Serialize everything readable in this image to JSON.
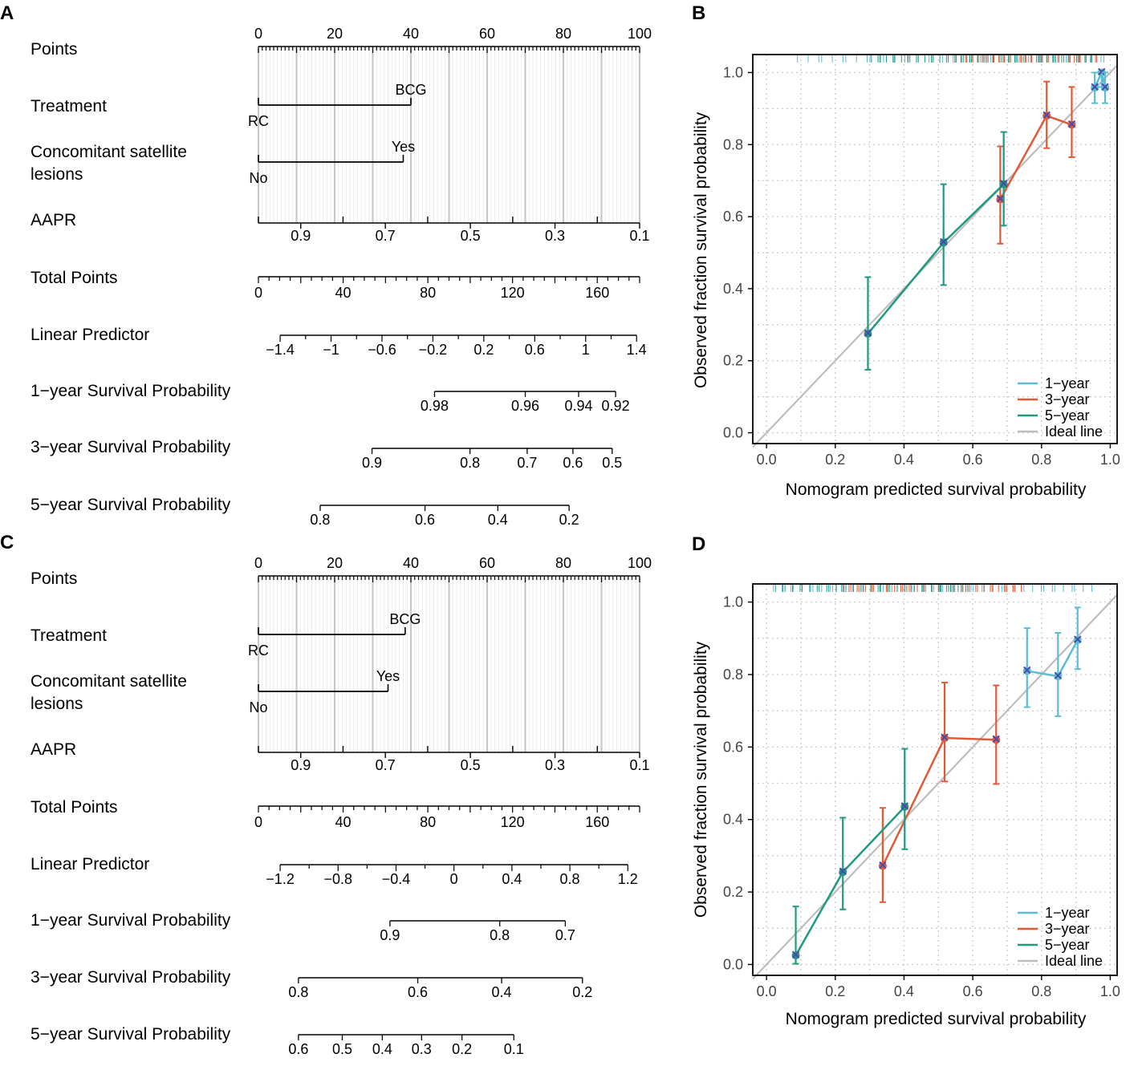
{
  "figure": {
    "nomograms": [
      {
        "panel_label": "A",
        "rows": {
          "points": "Points",
          "treatment": "Treatment",
          "lesions_line1": "Concomitant satellite",
          "lesions_line2": "lesions",
          "aapr": "AAPR",
          "total_points": "Total Points",
          "linear_predictor": "Linear Predictor",
          "surv1": "1−year Survival Probability",
          "surv3": "3−year Survival Probability",
          "surv5": "5−year Survival Probability"
        },
        "points_ticks": [
          "0",
          "20",
          "40",
          "60",
          "80",
          "100"
        ],
        "treatment": {
          "low_label": "RC",
          "high_label": "BCG",
          "points": 40
        },
        "lesions": {
          "low_label": "No",
          "high_label": "Yes",
          "points": 38
        },
        "aapr_ticks": [
          {
            "v": 0.9,
            "p": 11.1,
            "label": "0.9"
          },
          {
            "v": 0.7,
            "p": 33.3,
            "label": "0.7"
          },
          {
            "v": 0.5,
            "p": 55.6,
            "label": "0.5"
          },
          {
            "v": 0.3,
            "p": 77.8,
            "label": "0.3"
          },
          {
            "v": 0.1,
            "p": 100,
            "label": "0.1"
          }
        ],
        "aapr_minor": [
          22.2,
          44.4,
          66.7,
          88.9
        ],
        "total_points": {
          "max": 180,
          "labels": [
            "0",
            "40",
            "80",
            "120",
            "160"
          ]
        },
        "linear_predictor": {
          "p_start": 5.7,
          "p_end": 99.2,
          "min": -1.4,
          "max": 1.4,
          "labels": [
            "−1.4",
            "−1",
            "−0.6",
            "−0.2",
            "0.2",
            "0.6",
            "1",
            "1.4"
          ]
        },
        "surv1": {
          "p_start": 46.2,
          "p_end": 93.7,
          "ticks": [
            {
              "p": 46.2,
              "label": "0.98"
            },
            {
              "p": 70.0,
              "label": "0.96"
            },
            {
              "p": 84.0,
              "label": "0.94"
            },
            {
              "p": 93.7,
              "label": "0.92"
            }
          ]
        },
        "surv3": {
          "p_start": 29.8,
          "p_end": 92.8,
          "ticks": [
            {
              "p": 29.8,
              "label": "0.9"
            },
            {
              "p": 55.5,
              "label": "0.8"
            },
            {
              "p": 70.5,
              "label": "0.7"
            },
            {
              "p": 82.5,
              "label": "0.6"
            },
            {
              "p": 92.8,
              "label": "0.5"
            }
          ]
        },
        "surv5": {
          "p_start": 16.2,
          "p_end": 81.5,
          "ticks": [
            {
              "p": 16.2,
              "label": "0.8"
            },
            {
              "p": 43.7,
              "label": "0.6"
            },
            {
              "p": 62.8,
              "label": "0.4"
            },
            {
              "p": 81.5,
              "label": "0.2"
            }
          ]
        }
      },
      {
        "panel_label": "C",
        "rows": {
          "points": "Points",
          "treatment": "Treatment",
          "lesions_line1": "Concomitant satellite",
          "lesions_line2": "lesions",
          "aapr": "AAPR",
          "total_points": "Total Points",
          "linear_predictor": "Linear Predictor",
          "surv1": "1−year Survival Probability",
          "surv3": "3−year Survival Probability",
          "surv5": "5−year Survival Probability"
        },
        "points_ticks": [
          "0",
          "20",
          "40",
          "60",
          "80",
          "100"
        ],
        "treatment": {
          "low_label": "RC",
          "high_label": "BCG",
          "points": 38.5
        },
        "lesions": {
          "low_label": "No",
          "high_label": "Yes",
          "points": 34
        },
        "aapr_ticks": [
          {
            "v": 0.9,
            "p": 11.1,
            "label": "0.9"
          },
          {
            "v": 0.7,
            "p": 33.3,
            "label": "0.7"
          },
          {
            "v": 0.5,
            "p": 55.6,
            "label": "0.5"
          },
          {
            "v": 0.3,
            "p": 77.8,
            "label": "0.3"
          },
          {
            "v": 0.1,
            "p": 100,
            "label": "0.1"
          }
        ],
        "aapr_minor": [
          22.2,
          44.4,
          66.7,
          88.9
        ],
        "total_points": {
          "max": 180,
          "labels": [
            "0",
            "40",
            "80",
            "120",
            "160"
          ]
        },
        "linear_predictor": {
          "p_start": 5.7,
          "p_end": 96.9,
          "min": -1.2,
          "max": 1.2,
          "labels": [
            "−1.2",
            "−0.8",
            "−0.4",
            "0",
            "0.4",
            "0.8",
            "1.2"
          ]
        },
        "surv1": {
          "p_start": 34.5,
          "p_end": 80.5,
          "ticks": [
            {
              "p": 34.5,
              "label": "0.9"
            },
            {
              "p": 63.3,
              "label": "0.8"
            },
            {
              "p": 80.5,
              "label": "0.7"
            }
          ]
        },
        "surv3": {
          "p_start": 10.5,
          "p_end": 85.0,
          "ticks": [
            {
              "p": 10.5,
              "label": "0.8"
            },
            {
              "p": 41.8,
              "label": "0.6"
            },
            {
              "p": 63.8,
              "label": "0.4"
            },
            {
              "p": 85.0,
              "label": "0.2"
            }
          ]
        },
        "surv5": {
          "p_start": 10.5,
          "p_end": 67.0,
          "ticks": [
            {
              "p": 10.5,
              "label": "0.6"
            },
            {
              "p": 22.0,
              "label": "0.5"
            },
            {
              "p": 32.5,
              "label": "0.4"
            },
            {
              "p": 42.8,
              "label": "0.3"
            },
            {
              "p": 53.4,
              "label": "0.2"
            },
            {
              "p": 67.0,
              "label": "0.1"
            }
          ]
        }
      }
    ]
  },
  "chart_data": [
    {
      "panel_label": "B",
      "type": "line",
      "xlabel": "Nomogram predicted survival probability",
      "ylabel": "Observed fraction survival probability",
      "xlim": [
        -0.04,
        1.02
      ],
      "ylim": [
        -0.03,
        1.05
      ],
      "ticks": [
        "0.0",
        "0.2",
        "0.4",
        "0.6",
        "0.8",
        "1.0"
      ],
      "legend": [
        "1−year",
        "3−year",
        "5−year",
        "Ideal line"
      ],
      "colors": {
        "y1": "#5bbcd6",
        "y3": "#e05a3a",
        "y5": "#1f9a80",
        "ideal": "#bdbdbd",
        "x": "#4a4aa8"
      },
      "series": [
        {
          "name": "1−year",
          "color": "#5bbcd6",
          "x": [
            0.955,
            0.975,
            0.985
          ],
          "y": [
            0.958,
            1.0,
            0.958
          ],
          "lo": [
            0.915,
            0.96,
            0.915
          ],
          "hi": [
            1.0,
            1.0,
            1.0
          ]
        },
        {
          "name": "3−year",
          "color": "#e05a3a",
          "x": [
            0.68,
            0.815,
            0.888
          ],
          "y": [
            0.648,
            0.88,
            0.855
          ],
          "lo": [
            0.525,
            0.79,
            0.765
          ],
          "hi": [
            0.795,
            0.975,
            0.96
          ]
        },
        {
          "name": "5−year",
          "color": "#1f9a80",
          "x": [
            0.295,
            0.515,
            0.69
          ],
          "y": [
            0.275,
            0.528,
            0.69
          ],
          "lo": [
            0.175,
            0.41,
            0.575
          ],
          "hi": [
            0.432,
            0.69,
            0.835
          ]
        }
      ],
      "rug": [
        {
          "color": "#5bbcd6",
          "from": 0.09,
          "to": 1.0,
          "count": 40
        },
        {
          "color": "#e05a3a",
          "from": 0.55,
          "to": 0.97,
          "count": 42
        },
        {
          "color": "#1f9a80",
          "from": 0.3,
          "to": 0.95,
          "count": 46
        }
      ]
    },
    {
      "panel_label": "D",
      "type": "line",
      "xlabel": "Nomogram predicted survival probability",
      "ylabel": "Observed fraction survival probability",
      "xlim": [
        -0.04,
        1.02
      ],
      "ylim": [
        -0.03,
        1.05
      ],
      "ticks": [
        "0.0",
        "0.2",
        "0.4",
        "0.6",
        "0.8",
        "1.0"
      ],
      "legend": [
        "1−year",
        "3−year",
        "5−year",
        "Ideal line"
      ],
      "colors": {
        "y1": "#5bbcd6",
        "y3": "#e05a3a",
        "y5": "#1f9a80",
        "ideal": "#bdbdbd",
        "x": "#4a4aa8"
      },
      "series": [
        {
          "name": "1−year",
          "color": "#5bbcd6",
          "x": [
            0.758,
            0.848,
            0.905
          ],
          "y": [
            0.81,
            0.795,
            0.895
          ],
          "lo": [
            0.71,
            0.685,
            0.815
          ],
          "hi": [
            0.928,
            0.915,
            0.985
          ]
        },
        {
          "name": "3−year",
          "color": "#e05a3a",
          "x": [
            0.338,
            0.518,
            0.668
          ],
          "y": [
            0.272,
            0.625,
            0.62
          ],
          "lo": [
            0.172,
            0.505,
            0.498
          ],
          "hi": [
            0.432,
            0.778,
            0.77
          ]
        },
        {
          "name": "5−year",
          "color": "#1f9a80",
          "x": [
            0.085,
            0.222,
            0.402
          ],
          "y": [
            0.025,
            0.255,
            0.435
          ],
          "lo": [
            0.002,
            0.152,
            0.318
          ],
          "hi": [
            0.16,
            0.405,
            0.595
          ]
        }
      ],
      "rug": [
        {
          "color": "#5bbcd6",
          "from": 0.02,
          "to": 0.95,
          "count": 50
        },
        {
          "color": "#e05a3a",
          "from": 0.2,
          "to": 0.75,
          "count": 40
        },
        {
          "color": "#1f9a80",
          "from": 0.02,
          "to": 0.6,
          "count": 36
        }
      ]
    }
  ]
}
